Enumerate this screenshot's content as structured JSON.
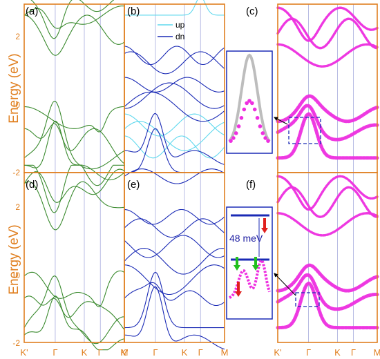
{
  "chart_data": {
    "type": "line",
    "ylabel": "Energy (eV)",
    "ylim": [
      -2,
      2.6
    ],
    "yticks": [
      "2",
      "0",
      "-2"
    ],
    "xticks": [
      "K'",
      "Γ",
      "K",
      "Γ",
      "M"
    ],
    "panels": [
      {
        "label": "(a)",
        "style": "lines",
        "color": "#3a8a2e"
      },
      {
        "label": "(b)",
        "style": "lines",
        "legend": [
          "up",
          "dn"
        ],
        "colors": [
          "#5fd8ee",
          "#1a2ab5"
        ]
      },
      {
        "label": "(c)",
        "style": "fat-bands",
        "color": "#ee2fe0"
      },
      {
        "label": "(d)",
        "style": "lines",
        "color": "#3a8a2e"
      },
      {
        "label": "(e)",
        "style": "lines",
        "color": "#1a2ab5"
      },
      {
        "label": "(f)",
        "style": "fat-bands",
        "color": "#ee2fe0",
        "annotation": "48 meV"
      }
    ]
  }
}
